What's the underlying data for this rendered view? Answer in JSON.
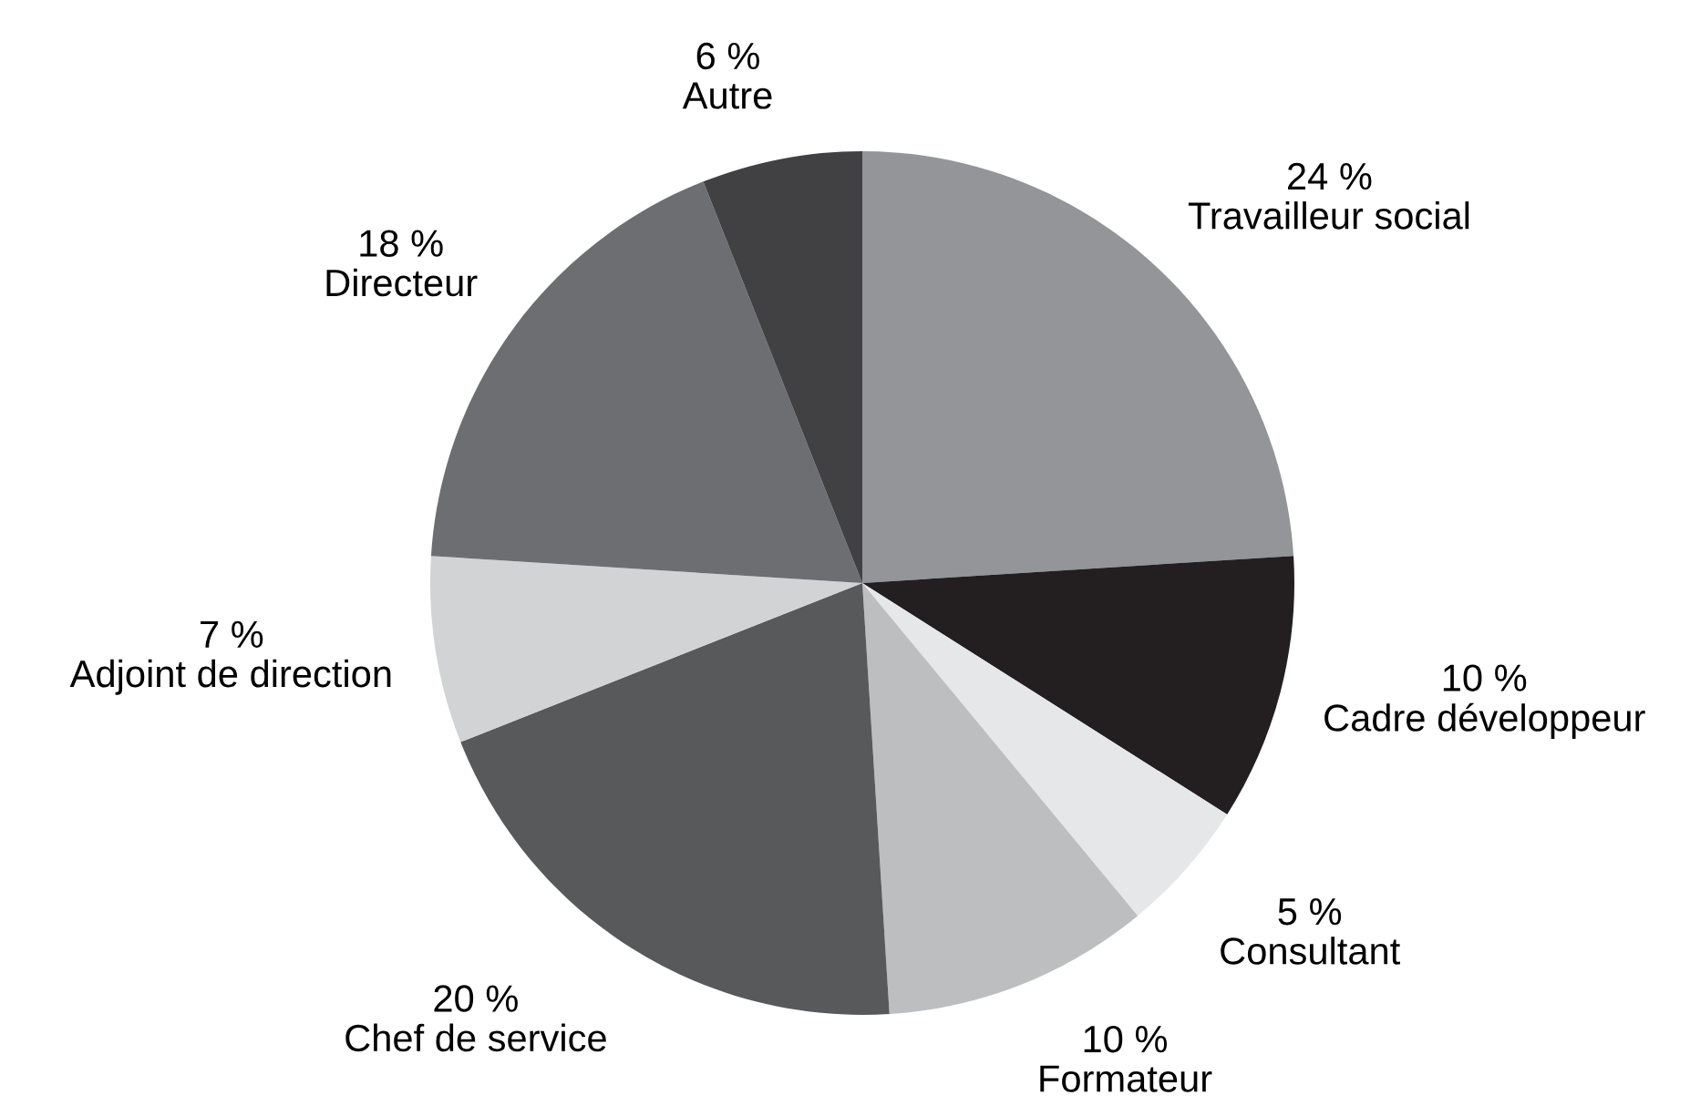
{
  "chart_data": {
    "type": "pie",
    "categories": [
      "Travailleur social",
      "Cadre développeur",
      "Consultant",
      "Formateur",
      "Chef de service",
      "Adjoint de direction",
      "Directeur",
      "Autre"
    ],
    "values": [
      24,
      10,
      5,
      10,
      20,
      7,
      18,
      6
    ],
    "value_labels": [
      "24 %",
      "10 %",
      "5 %",
      "10 %",
      "20 %",
      "7 %",
      "18 %",
      "6 %"
    ],
    "colors": [
      "#939598",
      "#231f20",
      "#e6e7e8",
      "#bcbec0",
      "#58595b",
      "#d1d3d4",
      "#6d6e71",
      "#414042"
    ],
    "legend": false
  }
}
